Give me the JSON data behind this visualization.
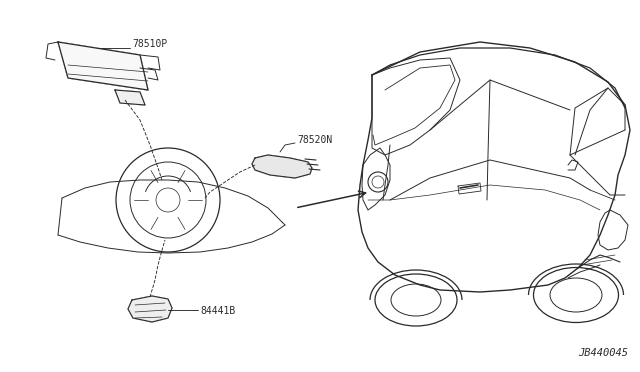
{
  "bg_color": "#ffffff",
  "line_color": "#2a2a2a",
  "label_color": "#2a2a2a",
  "diagram_id": "JB440045",
  "figsize": [
    6.4,
    3.72
  ],
  "dpi": 100,
  "parts": [
    "78510P",
    "78520N",
    "84441B"
  ]
}
